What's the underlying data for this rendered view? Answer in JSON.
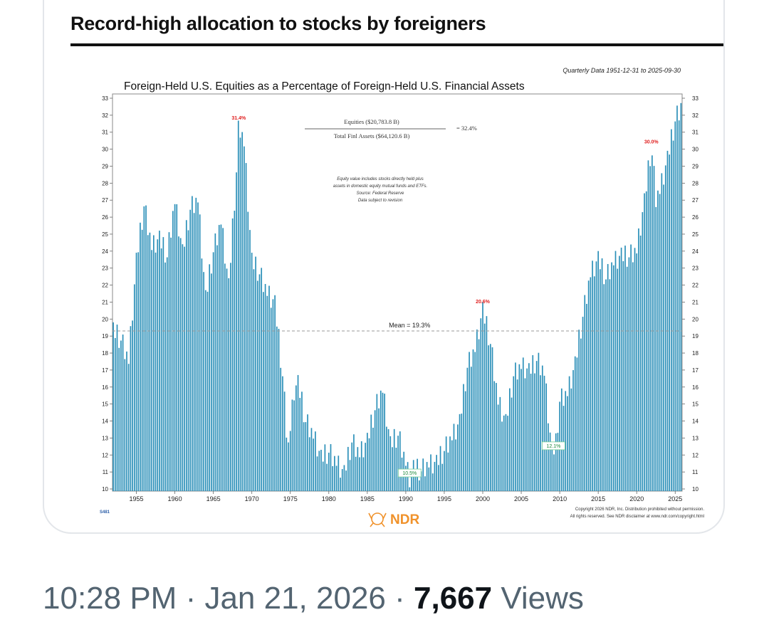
{
  "headline": "Record-high allocation to stocks by foreigners",
  "footer": {
    "time": "10:28 PM",
    "sep1": " · ",
    "date": "Jan 21, 2026",
    "sep2": " · ",
    "views_count": "7,667",
    "views_label": " Views"
  },
  "chart_data": {
    "type": "bar",
    "title": "Foreign-Held U.S. Equities as a Percentage of Foreign-Held U.S. Financial Assets",
    "subtitle": "Quarterly Data 1951-12-31 to 2025-09-30",
    "formula": {
      "numerator": "Equities ($20,783.8 B)",
      "denominator": "Total Finl Assets ($64,120.6 B)",
      "result": "= 32.4%"
    },
    "notes": [
      "Equity value includes stocks directly held plus",
      "assets in domestic equity mutual funds and ETFs.",
      "Source: Federal Reserve",
      "Data subject to revision"
    ],
    "mean": {
      "value": 19.3,
      "label": "Mean = 19.3%"
    },
    "ylim": [
      10,
      33
    ],
    "yticks": [
      10,
      11,
      12,
      13,
      14,
      15,
      16,
      17,
      18,
      19,
      20,
      21,
      22,
      23,
      24,
      25,
      26,
      27,
      28,
      29,
      30,
      31,
      32,
      33
    ],
    "xlim": [
      1951.9,
      2025.9
    ],
    "xticks": [
      "1955",
      "1960",
      "1965",
      "1970",
      "1975",
      "1980",
      "1985",
      "1990",
      "1995",
      "2000",
      "2005",
      "2010",
      "2015",
      "2020",
      "2025"
    ],
    "bar_color": "#2a8fb8",
    "annotations": [
      {
        "label": "31.4%",
        "x": 1968.3,
        "y": 31.4,
        "color": "#e02020",
        "boxed": false
      },
      {
        "label": "20.6%",
        "x": 2000.0,
        "y": 20.6,
        "color": "#e02020",
        "boxed": false
      },
      {
        "label": "30.0%",
        "x": 2021.9,
        "y": 30.0,
        "color": "#e02020",
        "boxed": false
      },
      {
        "label": "10.5%",
        "x": 1990.5,
        "y": 10.5,
        "color": "#1c8a3c",
        "boxed": true
      },
      {
        "label": "12.1%",
        "x": 2009.2,
        "y": 12.1,
        "color": "#1c8a3c",
        "boxed": true
      }
    ],
    "series_id": "S481",
    "copyright": [
      "Copyright 2026 NDR, Inc. Distribution prohibited without permission.",
      "All rights reserved. See NDR disclaimer at www.ndr.com/copyright.html"
    ],
    "logo_text": "NDR",
    "series_anchors": [
      [
        1952.0,
        19.4
      ],
      [
        1953.0,
        18.6
      ],
      [
        1954.0,
        17.5
      ],
      [
        1955.0,
        23.5
      ],
      [
        1956.0,
        26.5
      ],
      [
        1957.0,
        24.2
      ],
      [
        1958.0,
        24.8
      ],
      [
        1959.0,
        23.5
      ],
      [
        1960.0,
        26.9
      ],
      [
        1961.0,
        24.0
      ],
      [
        1962.0,
        26.3
      ],
      [
        1963.0,
        27.0
      ],
      [
        1964.0,
        21.3
      ],
      [
        1965.0,
        23.8
      ],
      [
        1966.0,
        25.7
      ],
      [
        1967.0,
        22.0
      ],
      [
        1968.0,
        28.5
      ],
      [
        1968.3,
        31.4
      ],
      [
        1969.0,
        30.3
      ],
      [
        1970.0,
        23.5
      ],
      [
        1971.0,
        22.5
      ],
      [
        1972.0,
        21.5
      ],
      [
        1973.0,
        21.0
      ],
      [
        1974.0,
        16.5
      ],
      [
        1974.7,
        12.2
      ],
      [
        1975.5,
        15.8
      ],
      [
        1976.0,
        16.3
      ],
      [
        1977.0,
        13.8
      ],
      [
        1978.0,
        13.1
      ],
      [
        1979.0,
        11.9
      ],
      [
        1980.0,
        12.0
      ],
      [
        1981.0,
        11.5
      ],
      [
        1982.0,
        11.0
      ],
      [
        1983.0,
        12.6
      ],
      [
        1984.0,
        12.0
      ],
      [
        1985.0,
        12.9
      ],
      [
        1986.0,
        14.5
      ],
      [
        1987.0,
        15.8
      ],
      [
        1988.0,
        12.7
      ],
      [
        1989.0,
        13.0
      ],
      [
        1990.0,
        11.5
      ],
      [
        1990.5,
        10.5
      ],
      [
        1991.0,
        11.3
      ],
      [
        1992.0,
        10.9
      ],
      [
        1993.0,
        11.4
      ],
      [
        1994.0,
        11.6
      ],
      [
        1995.0,
        12.1
      ],
      [
        1996.0,
        13.0
      ],
      [
        1997.0,
        14.0
      ],
      [
        1998.0,
        17.0
      ],
      [
        1999.0,
        18.2
      ],
      [
        2000.0,
        20.6
      ],
      [
        2001.0,
        18.4
      ],
      [
        2002.0,
        15.1
      ],
      [
        2003.0,
        14.0
      ],
      [
        2004.0,
        16.5
      ],
      [
        2005.0,
        17.2
      ],
      [
        2006.0,
        17.0
      ],
      [
        2007.0,
        17.4
      ],
      [
        2008.0,
        16.8
      ],
      [
        2009.0,
        12.1
      ],
      [
        2009.5,
        12.6
      ],
      [
        2010.0,
        15.0
      ],
      [
        2011.0,
        15.6
      ],
      [
        2012.0,
        17.4
      ],
      [
        2013.0,
        20.0
      ],
      [
        2014.0,
        22.6
      ],
      [
        2015.0,
        23.6
      ],
      [
        2016.0,
        22.2
      ],
      [
        2017.0,
        23.3
      ],
      [
        2018.0,
        23.8
      ],
      [
        2019.0,
        23.5
      ],
      [
        2020.0,
        24.0
      ],
      [
        2021.0,
        27.0
      ],
      [
        2021.9,
        30.0
      ],
      [
        2022.5,
        27.0
      ],
      [
        2023.0,
        27.5
      ],
      [
        2024.0,
        29.5
      ],
      [
        2025.0,
        31.5
      ],
      [
        2025.75,
        32.4
      ]
    ]
  }
}
